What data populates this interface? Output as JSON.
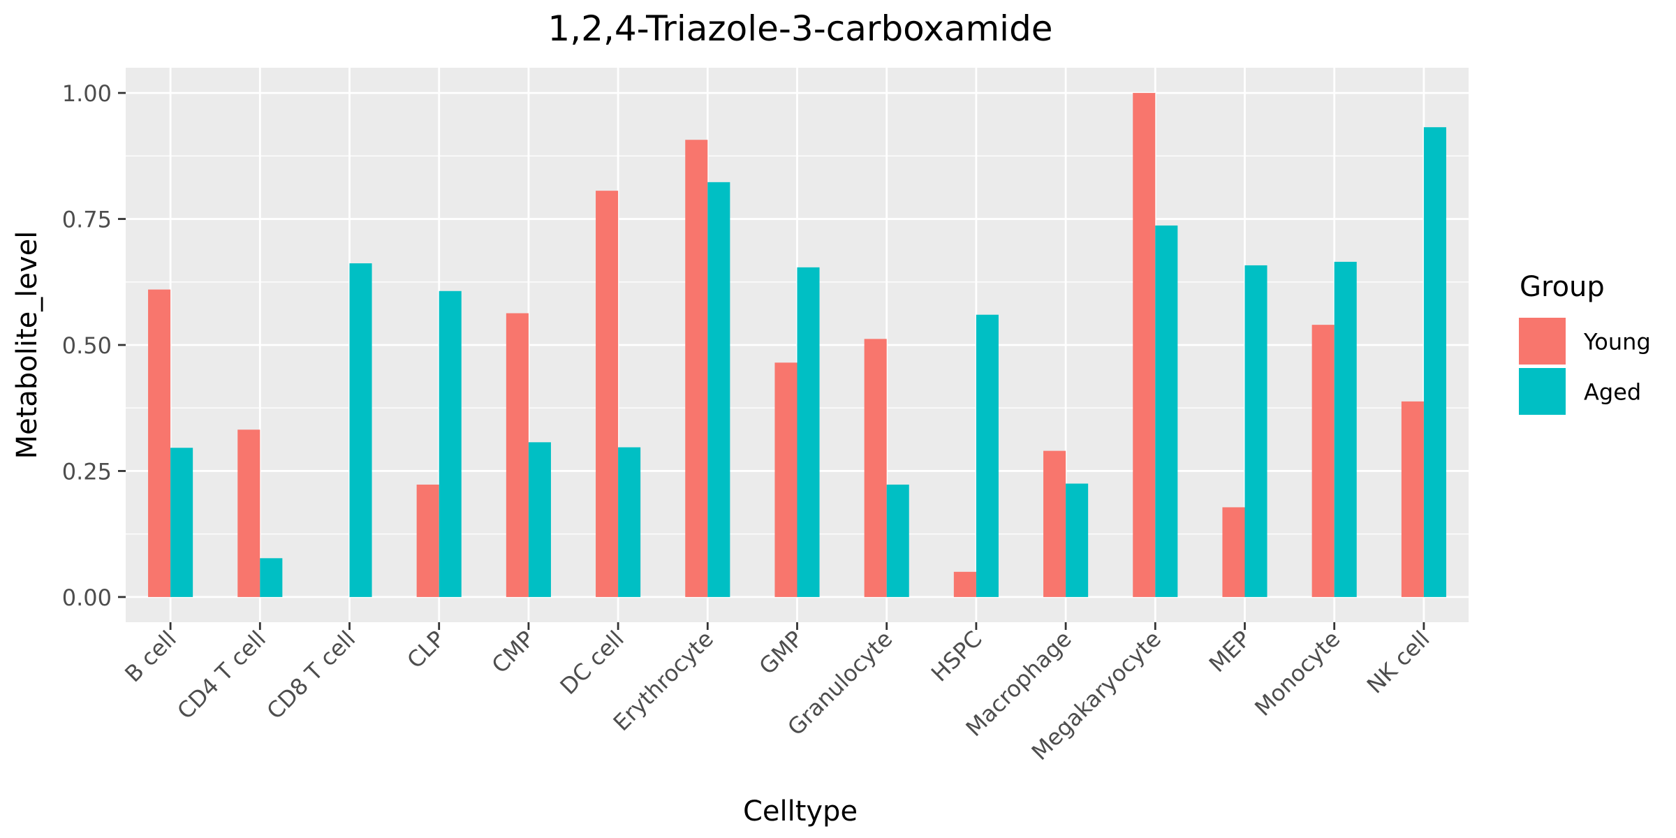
{
  "chart_data": {
    "type": "bar",
    "title": "1,2,4-Triazole-3-carboxamide",
    "xlabel": "Celltype",
    "ylabel": "Metabolite_level",
    "ylim": [
      -0.05,
      1.05
    ],
    "yticks": [
      0.0,
      0.25,
      0.5,
      0.75,
      1.0
    ],
    "ytick_labels": [
      "0.00",
      "0.25",
      "0.50",
      "0.75",
      "1.00"
    ],
    "grid": true,
    "legend": {
      "title": "Group",
      "position": "right"
    },
    "categories": [
      "B cell",
      "CD4 T cell",
      "CD8 T cell",
      "CLP",
      "CMP",
      "DC cell",
      "Erythrocyte",
      "GMP",
      "Granulocyte",
      "HSPC",
      "Macrophage",
      "Megakaryocyte",
      "MEP",
      "Monocyte",
      "NK cell"
    ],
    "series": [
      {
        "name": "Young",
        "color": "#F8766D",
        "values": [
          0.61,
          0.332,
          0.0,
          0.223,
          0.563,
          0.806,
          0.907,
          0.465,
          0.512,
          0.05,
          0.29,
          1.0,
          0.178,
          0.54,
          0.388
        ]
      },
      {
        "name": "Aged",
        "color": "#00BFC4",
        "values": [
          0.296,
          0.077,
          0.662,
          0.607,
          0.307,
          0.297,
          0.823,
          0.654,
          0.223,
          0.56,
          0.225,
          0.737,
          0.658,
          0.665,
          0.932
        ]
      }
    ]
  }
}
